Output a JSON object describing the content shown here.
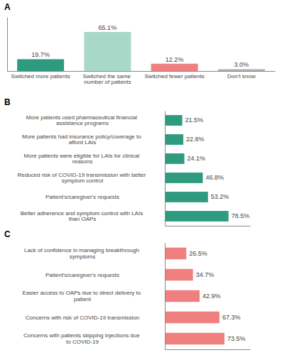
{
  "chart_data": [
    {
      "type": "bar",
      "title": "A",
      "categories": [
        "Switched more patients",
        "Switched the same\nnumber of patients",
        "Switched fewer patients",
        "Don’t know"
      ],
      "values": [
        19.7,
        65.1,
        12.2,
        3.0
      ],
      "value_labels": [
        "19.7%",
        "65.1%",
        "12.2%",
        "3.0%"
      ],
      "colors": [
        "#2e9b7e",
        "#a8d8c8",
        "#f08080",
        "#b0b0b0"
      ],
      "ylim": [
        0,
        90
      ],
      "data_labels": true,
      "tick_labels": "x"
    },
    {
      "type": "bar",
      "title": "B",
      "orientation": "horizontal",
      "categories": [
        "Better adherence and symptom control with LAIs\nthan OAPs",
        "Patient's/caregiver's requests",
        "Reduced risk of COVID-19 transmission with better\nsymptom control",
        "More patients were eligible for LAIs for clinical\nreasons",
        "More patients had insurance policy/coverage to\nafford LAIs",
        "More patients used pharmaceutical financial\nassistance programs"
      ],
      "values": [
        78.5,
        53.2,
        46.8,
        24.1,
        22.8,
        21.5
      ],
      "value_labels": [
        "78.5%",
        "53.2%",
        "46.8%",
        "24.1%",
        "22.8%",
        "21.5%"
      ],
      "color": "#2e9b7e",
      "xlim": [
        0,
        105
      ],
      "data_labels": true,
      "tick_labels": "y"
    },
    {
      "type": "bar",
      "title": "C",
      "orientation": "horizontal",
      "categories": [
        "Concerns with patients skipping injections due\nto COVID-19",
        "Concerns with risk of COVID-19 transmission",
        "Easier access to OAPs due to direct delivery to\npatient",
        "Patient's/caregiver's requests",
        "Lack of confidence in managing breakthrough\nsymptoms"
      ],
      "values": [
        73.5,
        67.3,
        42.9,
        34.7,
        26.5
      ],
      "value_labels": [
        "73.5%",
        "67.3%",
        "42.9%",
        "34.7%",
        "26.5%"
      ],
      "color": "#f08080",
      "xlim": [
        0,
        105
      ],
      "data_labels": true,
      "tick_labels": "y"
    }
  ]
}
